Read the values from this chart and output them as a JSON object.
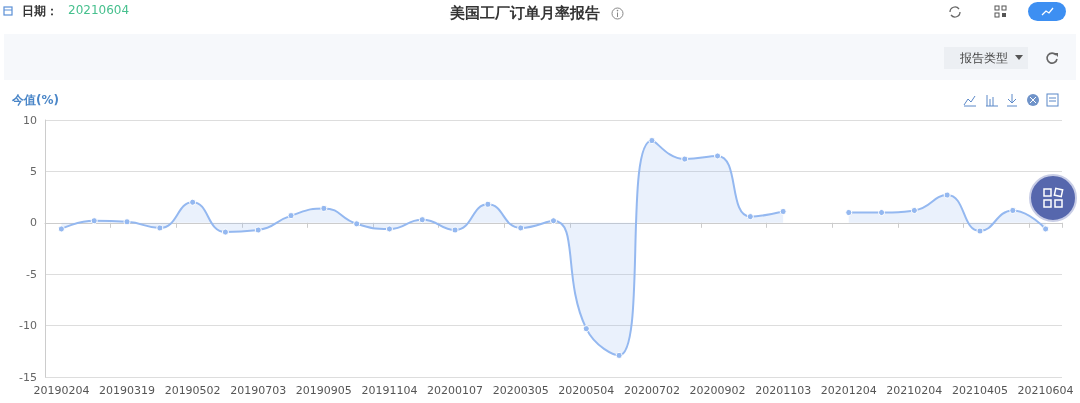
{
  "chart_data": {
    "type": "area",
    "title": "美国工厂订单月率报告",
    "ylabel": "今值(%)",
    "annotations": [
      "日期：",
      "20210604",
      "报告类型"
    ],
    "categories": [
      "20190204",
      null,
      "20190319",
      null,
      "20190502",
      null,
      "20190703",
      null,
      "20190905",
      null,
      "20191104",
      null,
      "20200107",
      null,
      "20200305",
      null,
      "20200504",
      null,
      "20200702",
      null,
      "20200902",
      null,
      "20201103",
      null,
      "20201204",
      null,
      "20210204",
      null,
      "20210405",
      null,
      "20210604"
    ],
    "series": [
      {
        "color": "#94b8f0",
        "values": [
          -0.6,
          0.2,
          0.1,
          -0.5,
          2.0,
          -0.9,
          -0.7,
          0.7,
          1.4,
          -0.1,
          -0.6,
          0.3,
          -0.7,
          1.8,
          -0.5,
          0.2,
          -10.3,
          -12.9,
          8.0,
          6.2,
          6.5,
          0.6,
          1.1,
          null,
          1.0,
          1.0,
          1.2,
          2.7,
          -0.8,
          1.2,
          -0.6
        ]
      }
    ],
    "ylim": [
      -15,
      10
    ],
    "yticks": [
      -15,
      -10,
      -5,
      0,
      5,
      10
    ],
    "grid": "y",
    "marker": "circle",
    "line_style": "solid"
  }
}
